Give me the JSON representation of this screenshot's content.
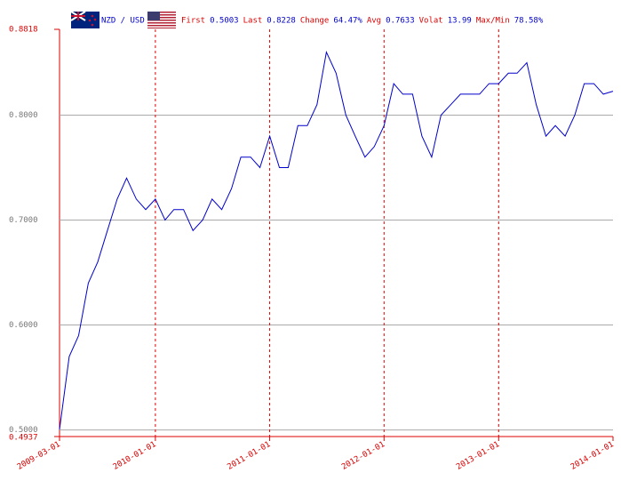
{
  "header": {
    "pair": "NZD / USD",
    "stats": [
      {
        "label": "First",
        "value": "0.5003"
      },
      {
        "label": "Last",
        "value": "0.8228"
      },
      {
        "label": "Change",
        "value": "64.47%"
      },
      {
        "label": "Avg",
        "value": "0.7633"
      },
      {
        "label": "Volat",
        "value": "13.99"
      },
      {
        "label": "Max/Min",
        "value": "78.58%"
      }
    ]
  },
  "chart_data": {
    "type": "line",
    "color": "#0000cc",
    "grid": true,
    "x": [
      "2009-03-01",
      "2009-04-01",
      "2009-05-01",
      "2009-06-01",
      "2009-07-01",
      "2009-08-01",
      "2009-09-01",
      "2009-10-01",
      "2009-11-01",
      "2009-12-01",
      "2010-01-01",
      "2010-02-01",
      "2010-03-01",
      "2010-04-01",
      "2010-05-01",
      "2010-06-01",
      "2010-07-01",
      "2010-08-01",
      "2010-09-01",
      "2010-10-01",
      "2010-11-01",
      "2010-12-01",
      "2011-01-01",
      "2011-02-01",
      "2011-03-01",
      "2011-04-01",
      "2011-05-01",
      "2011-06-01",
      "2011-07-01",
      "2011-08-01",
      "2011-09-01",
      "2011-10-01",
      "2011-11-01",
      "2011-12-01",
      "2012-01-01",
      "2012-02-01",
      "2012-03-01",
      "2012-04-01",
      "2012-05-01",
      "2012-06-01",
      "2012-07-01",
      "2012-08-01",
      "2012-09-01",
      "2012-10-01",
      "2012-11-01",
      "2012-12-01",
      "2013-01-01",
      "2013-02-01",
      "2013-03-01",
      "2013-04-01",
      "2013-05-01",
      "2013-06-01",
      "2013-07-01",
      "2013-08-01",
      "2013-09-01",
      "2013-10-01",
      "2013-11-01",
      "2013-12-01",
      "2014-01-01"
    ],
    "values": [
      0.5003,
      0.57,
      0.59,
      0.64,
      0.66,
      0.69,
      0.72,
      0.74,
      0.72,
      0.71,
      0.72,
      0.7,
      0.71,
      0.71,
      0.69,
      0.7,
      0.72,
      0.71,
      0.73,
      0.76,
      0.76,
      0.75,
      0.78,
      0.75,
      0.75,
      0.79,
      0.79,
      0.81,
      0.86,
      0.84,
      0.8,
      0.78,
      0.76,
      0.77,
      0.79,
      0.83,
      0.82,
      0.82,
      0.78,
      0.76,
      0.8,
      0.81,
      0.82,
      0.82,
      0.82,
      0.83,
      0.83,
      0.84,
      0.84,
      0.85,
      0.81,
      0.78,
      0.79,
      0.78,
      0.8,
      0.83,
      0.83,
      0.82,
      0.8228
    ],
    "xlim": [
      "2009-03-01",
      "2014-01-01"
    ],
    "xticks": [
      "2009-03-01",
      "2010-01-01",
      "2011-01-01",
      "2012-01-01",
      "2013-01-01",
      "2014-01-01"
    ],
    "ylim": [
      0.4937,
      0.8818
    ],
    "yticks": [
      {
        "value": 0.4937,
        "label": "0.4937"
      },
      {
        "value": 0.5,
        "label": "0.5000"
      },
      {
        "value": 0.6,
        "label": "0.6000"
      },
      {
        "value": 0.7,
        "label": "0.7000"
      },
      {
        "value": 0.8,
        "label": "0.8000"
      },
      {
        "value": 0.8818,
        "label": "0.8818"
      }
    ]
  }
}
